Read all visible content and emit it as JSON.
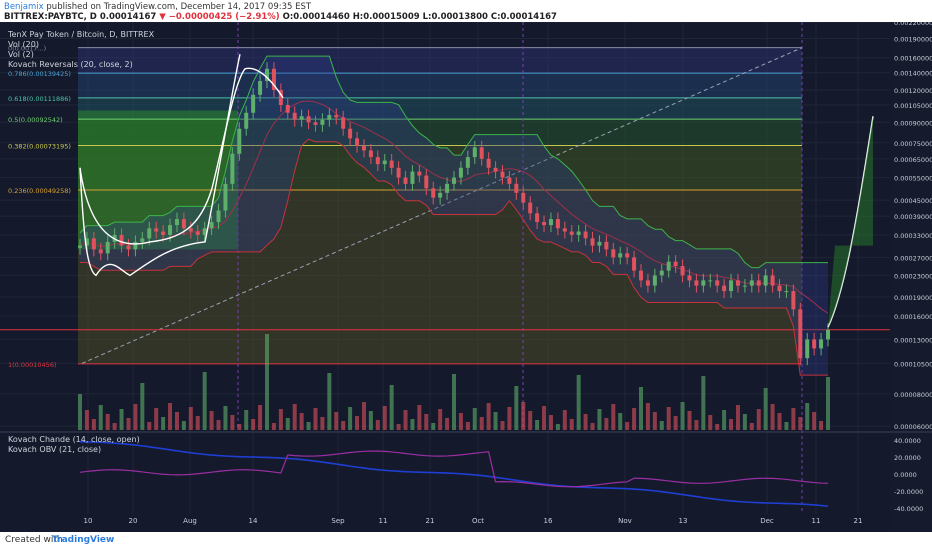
{
  "header": {
    "author": "Benjamix",
    "published": "published on TradingView.com, December 14, 2017 09:35 EST",
    "ohlc_line": "BITTREX:PAYBTC, D  0.00014167",
    "change": "▼ −0.00000425 (−2.91%)",
    "ohlc": "O:0.00014460 H:0.00015009 L:0.00013800 C:0.00014167"
  },
  "legend": {
    "title": "TenX Pay Token / Bitcoin, D, BITTREX",
    "vol20": "Vol (20)",
    "vol2": "Vol (2)",
    "kovach_rev": "Kovach Reversals (20, close, 2)",
    "chande": "Kovach Chande (14, close, open)",
    "obv": "Kovach OBV (21, close)"
  },
  "footer": {
    "created": "Created with",
    "brand": "TradingView"
  },
  "colors": {
    "background": "#141a2b",
    "up": "#5fae6b",
    "down": "#e0525e",
    "fib_green": "#2a8a2a",
    "chande_line": "#1f3fd4",
    "obv_line": "#9b2ea3"
  },
  "chart_data": {
    "type": "candlestick",
    "title": "TenX Pay Token / Bitcoin, D, BITTREX",
    "price_axis_labels": [
      "0.00220000",
      "0.00190000",
      "0.00160000",
      "0.00140000",
      "0.00120000",
      "0.00105000",
      "0.00090000",
      "0.00075000",
      "0.00065000",
      "0.00055000",
      "0.00045000",
      "0.00039000",
      "0.00033000",
      "0.00027000",
      "0.00023000",
      "0.00019000",
      "0.00016000",
      "0.00013000",
      "0.00010500",
      "0.00008000",
      "0.00006000"
    ],
    "osc_axis_labels": [
      "40.0000",
      "20.0000",
      "0.0000",
      "-20.0000",
      "-40.0000"
    ],
    "x_axis_labels": [
      "10",
      "20",
      "Aug",
      "14",
      "Sep",
      "11",
      "21",
      "Oct",
      "16",
      "Nov",
      "13",
      "Dec",
      "11",
      "21"
    ],
    "fib_levels": [
      {
        "label": "0(0.0017...)",
        "value": 0.00175
      },
      {
        "label": "0.786(0.00139425)",
        "value": 0.00139425
      },
      {
        "label": "0.618(0.00111886)",
        "value": 0.00111886
      },
      {
        "label": "0.5(0.00092542)",
        "value": 0.00092542
      },
      {
        "label": "0.382(0.00073195)",
        "value": 0.00073195
      },
      {
        "label": "0.236(0.00049258)",
        "value": 0.00049258
      },
      {
        "label": "1(0.00010456)",
        "value": 0.00010456
      }
    ],
    "horizontal_line": 0.00014167,
    "close_series": [
      0.0003,
      0.00032,
      0.00029,
      0.00028,
      0.00031,
      0.00033,
      0.0003,
      0.00029,
      0.00031,
      0.00032,
      0.00035,
      0.00034,
      0.00033,
      0.00036,
      0.00038,
      0.00035,
      0.00034,
      0.00033,
      0.00035,
      0.00037,
      0.00041,
      0.00052,
      0.00068,
      0.00085,
      0.00098,
      0.00115,
      0.0013,
      0.00145,
      0.0012,
      0.00105,
      0.00098,
      0.00092,
      0.00095,
      0.0009,
      0.00088,
      0.00092,
      0.00096,
      0.00094,
      0.00085,
      0.00078,
      0.00073,
      0.0007,
      0.00066,
      0.00062,
      0.00064,
      0.0006,
      0.00055,
      0.00052,
      0.00058,
      0.00056,
      0.0005,
      0.00046,
      0.00048,
      0.00052,
      0.00055,
      0.0006,
      0.00066,
      0.00072,
      0.00065,
      0.0006,
      0.00058,
      0.00055,
      0.00052,
      0.00048,
      0.00044,
      0.0004,
      0.00037,
      0.00036,
      0.00038,
      0.00035,
      0.00034,
      0.00033,
      0.00034,
      0.00032,
      0.0003,
      0.00031,
      0.00029,
      0.00027,
      0.00028,
      0.00027,
      0.00024,
      0.00022,
      0.00021,
      0.00023,
      0.00024,
      0.00026,
      0.00025,
      0.00023,
      0.00022,
      0.00021,
      0.00022,
      0.00022,
      0.00021,
      0.0002,
      0.00022,
      0.00021,
      0.00021,
      0.00022,
      0.00021,
      0.00023,
      0.00021,
      0.0002,
      0.0002,
      0.00017,
      0.00011,
      0.00013,
      0.00012,
      0.00013,
      0.00014167
    ],
    "grid": true
  }
}
